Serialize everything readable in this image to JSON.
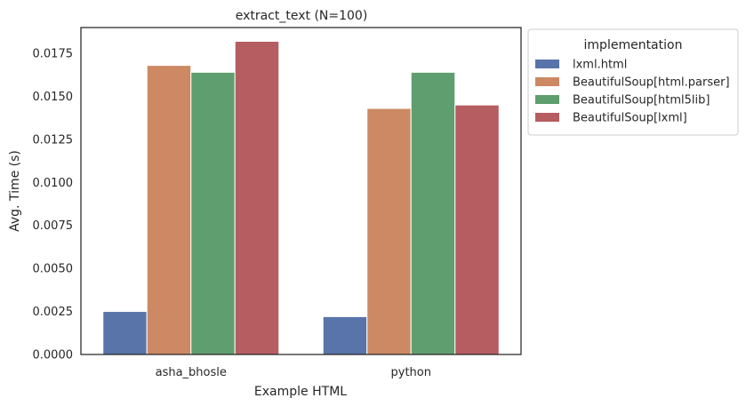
{
  "chart_data": {
    "type": "bar",
    "title": "extract_text (N=100)",
    "xlabel": "Example HTML",
    "ylabel": "Avg. Time (s)",
    "categories": [
      "asha_bhosle",
      "python"
    ],
    "ylim": [
      0,
      0.019
    ],
    "yticks": [
      "0.0000",
      "0.0025",
      "0.0050",
      "0.0075",
      "0.0100",
      "0.0125",
      "0.0150",
      "0.0175"
    ],
    "ytick_values": [
      0,
      0.0025,
      0.005,
      0.0075,
      0.01,
      0.0125,
      0.015,
      0.0175
    ],
    "grid": false,
    "legend": {
      "title": "implementation",
      "placement": "outside-top-right"
    },
    "series": [
      {
        "name": "lxml.html",
        "color": "#5874a8",
        "values": [
          0.0025,
          0.0022
        ]
      },
      {
        "name": "BeautifulSoup[html.parser]",
        "color": "#cc8963",
        "values": [
          0.0168,
          0.0143
        ]
      },
      {
        "name": "BeautifulSoup[html5lib]",
        "color": "#5f9e6e",
        "values": [
          0.0164,
          0.0164
        ]
      },
      {
        "name": "BeautifulSoup[lxml]",
        "color": "#b55d60",
        "values": [
          0.0182,
          0.0145
        ]
      }
    ]
  }
}
